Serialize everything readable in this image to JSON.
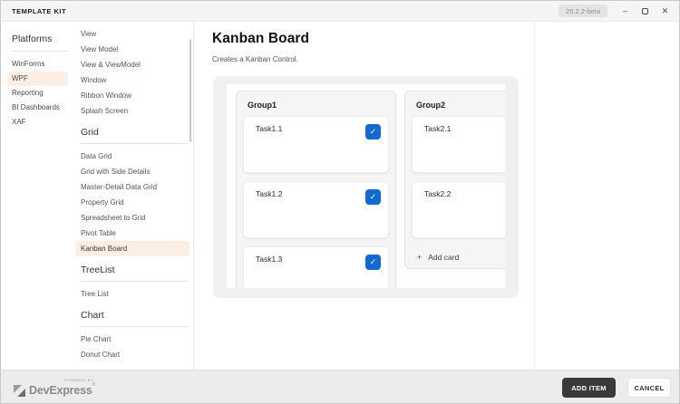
{
  "window": {
    "title": "TEMPLATE KIT",
    "version_badge": "25.2.2-beta",
    "controls": {
      "minimize_glyph": "–",
      "close_glyph": "✕"
    }
  },
  "platforms": {
    "heading": "Platforms",
    "items": [
      {
        "label": "WinForms",
        "active": false
      },
      {
        "label": "WPF",
        "active": true
      },
      {
        "label": "Reporting",
        "active": false
      },
      {
        "label": "BI Dashboards",
        "active": false
      },
      {
        "label": "XAF",
        "active": false
      }
    ]
  },
  "templates": {
    "groups": [
      {
        "heading": "",
        "items": [
          "View",
          "View Model",
          "View & ViewModel",
          "Window",
          "Ribbon Window",
          "Splash Screen"
        ],
        "active_item": ""
      },
      {
        "heading": "Grid",
        "items": [
          "Data Grid",
          "Grid with Side Details",
          "Master-Detail Data Grid",
          "Property Grid",
          "Spreadsheet to Grid",
          "Pivot Table",
          "Kanban Board"
        ],
        "active_item": "Kanban Board"
      },
      {
        "heading": "TreeList",
        "items": [
          "Tree List"
        ],
        "active_item": ""
      },
      {
        "heading": "Chart",
        "items": [
          "Pie Chart",
          "Donut Chart"
        ],
        "active_item": ""
      }
    ]
  },
  "detail": {
    "title": "Kanban Board",
    "description": "Creates a Kanban Control.",
    "preview": {
      "columns": [
        {
          "header": "Group1",
          "cards": [
            {
              "label": "Task1.1",
              "checked": true
            },
            {
              "label": "Task1.2",
              "checked": true
            },
            {
              "label": "Task1.3",
              "checked": true
            }
          ],
          "add_card": ""
        },
        {
          "header": "Group2",
          "cards": [
            {
              "label": "Task2.1",
              "checked": false
            },
            {
              "label": "Task2.2",
              "checked": false
            }
          ],
          "add_card": "Add card"
        }
      ],
      "checkbox_glyph": "✓",
      "add_card_plus": "+"
    }
  },
  "footer": {
    "brand": {
      "powered_by": "POWERED BY",
      "name": "DevExpress",
      "registered": "®"
    },
    "buttons": {
      "add_item": {
        "label": "ADD ITEM"
      },
      "cancel": {
        "label": "CANCEL"
      }
    }
  },
  "colors": {
    "accent_highlight": "#fceee2",
    "checkbox_blue": "#1269d2",
    "primary_button": "#3a3a3a",
    "titlebar_bg": "#f5f5f5",
    "footer_bg": "#ececec",
    "preview_frame": "#f0f0f0"
  }
}
